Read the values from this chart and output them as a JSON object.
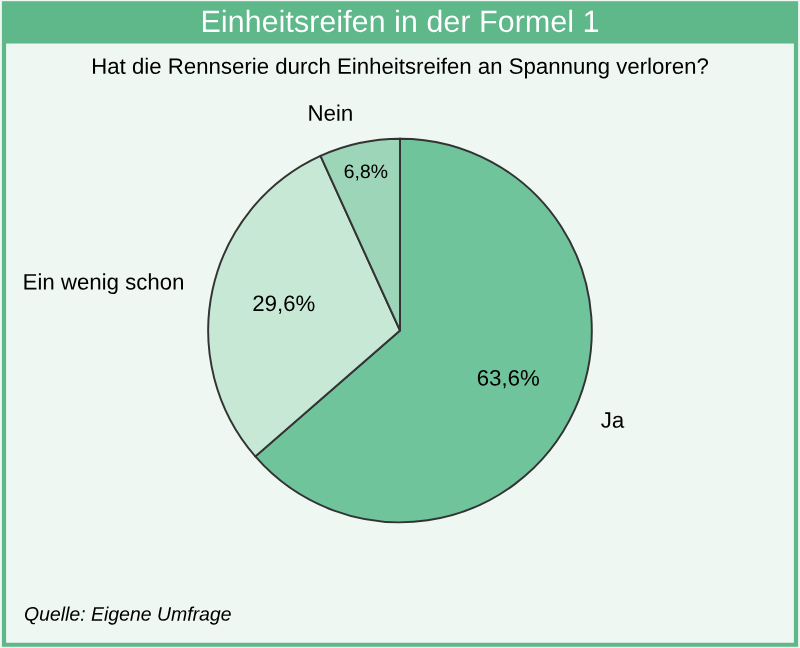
{
  "chart_data": {
    "type": "pie",
    "title": "Einheitsreifen in der Formel 1",
    "subtitle": "Hat die Rennserie durch Einheitsreifen an Spannung verloren?",
    "categories": [
      "Ja",
      "Ein wenig schon",
      "Nein"
    ],
    "values": [
      63.6,
      29.6,
      6.8
    ],
    "value_labels": [
      "63,6%",
      "29,6%",
      "6,8%"
    ],
    "colors": [
      "#6fc49b",
      "#c8e8d6",
      "#9dd5b9"
    ],
    "annotations": [
      "Quelle: Eigene Umfrage"
    ]
  }
}
